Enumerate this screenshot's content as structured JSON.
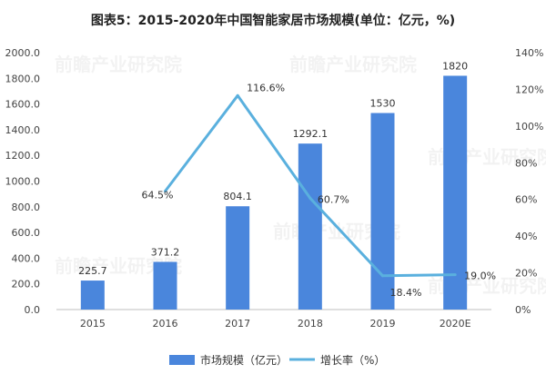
{
  "chart_data": {
    "type": "bar",
    "title": "图表5：2015-2020年中国智能家居市场规模(单位：亿元，%)",
    "categories": [
      "2015",
      "2016",
      "2017",
      "2018",
      "2019",
      "2020E"
    ],
    "series": [
      {
        "name": "市场规模（亿元）",
        "type": "bar",
        "axis": "left",
        "values": [
          225.7,
          371.2,
          804.1,
          1292.1,
          1530,
          1820
        ],
        "labels": [
          "225.7",
          "371.2",
          "804.1",
          "1292.1",
          "1530",
          "1820"
        ]
      },
      {
        "name": "增长率（%）",
        "type": "line",
        "axis": "right",
        "values": [
          null,
          64.5,
          116.6,
          60.7,
          18.4,
          19.0
        ],
        "labels": [
          "",
          "64.5%",
          "116.6%",
          "60.7%",
          "18.4%",
          "19.0%"
        ]
      }
    ],
    "y_left": {
      "min": 0,
      "max": 2000,
      "step": 200,
      "ticks": [
        "0.0",
        "200.0",
        "400.0",
        "600.0",
        "800.0",
        "1000.0",
        "1200.0",
        "1400.0",
        "1600.0",
        "1800.0",
        "2000.0"
      ]
    },
    "y_right": {
      "min": 0,
      "max": 140,
      "step": 20,
      "ticks": [
        "0%",
        "20%",
        "40%",
        "60%",
        "80%",
        "100%",
        "120%",
        "140%"
      ]
    },
    "grid": false,
    "legend_position": "bottom",
    "colors": {
      "bar": "#4a86dc",
      "line": "#5ab0de",
      "axis": "#bfbfbf"
    },
    "watermark": "前瞻产业研究院"
  }
}
